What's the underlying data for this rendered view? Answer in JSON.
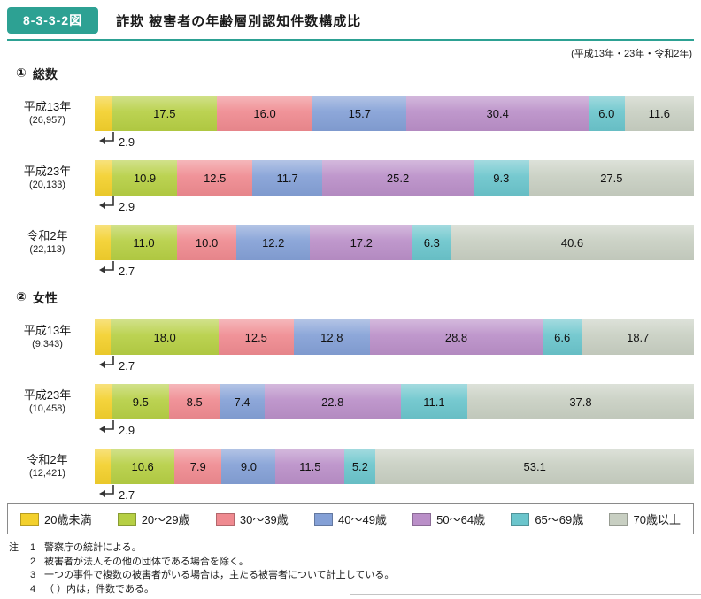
{
  "header": {
    "figure_label": "8-3-3-2図",
    "title": "詐欺 被害者の年齢層別認知件数構成比",
    "period_note": "(平成13年・23年・令和2年)"
  },
  "chart_data": {
    "type": "bar",
    "orientation": "horizontal",
    "stacked": true,
    "unit": "%",
    "xlim": [
      0,
      100
    ],
    "categories": [
      "20歳未満",
      "20～29歳",
      "30～39歳",
      "40～49歳",
      "50～64歳",
      "65～69歳",
      "70歳以上"
    ],
    "colors": [
      "#f3d02c",
      "#b6cf44",
      "#ef8a90",
      "#84a0d6",
      "#ba8fc8",
      "#6bc5cc",
      "#c8cfc2"
    ],
    "sections": [
      {
        "number": "①",
        "label": "総数",
        "rows": [
          {
            "year": "平成13年",
            "count": "(26,957)",
            "values": [
              2.9,
              17.5,
              16.0,
              15.7,
              30.4,
              6.0,
              11.6
            ]
          },
          {
            "year": "平成23年",
            "count": "(20,133)",
            "values": [
              2.9,
              10.9,
              12.5,
              11.7,
              25.2,
              9.3,
              27.5
            ]
          },
          {
            "year": "令和2年",
            "count": "(22,113)",
            "values": [
              2.7,
              11.0,
              10.0,
              12.2,
              17.2,
              6.3,
              40.6
            ]
          }
        ]
      },
      {
        "number": "②",
        "label": "女性",
        "rows": [
          {
            "year": "平成13年",
            "count": "(9,343)",
            "values": [
              2.7,
              18.0,
              12.5,
              12.8,
              28.8,
              6.6,
              18.7
            ]
          },
          {
            "year": "平成23年",
            "count": "(10,458)",
            "values": [
              2.9,
              9.5,
              8.5,
              7.4,
              22.8,
              11.1,
              37.8
            ]
          },
          {
            "year": "令和2年",
            "count": "(12,421)",
            "values": [
              2.7,
              10.6,
              7.9,
              9.0,
              11.5,
              5.2,
              53.1
            ]
          }
        ]
      }
    ],
    "legend_position": "bottom",
    "grid": false
  },
  "notes": {
    "label": "注",
    "items": [
      {
        "num": "1",
        "text": "警察庁の統計による。"
      },
      {
        "num": "2",
        "text": "被害者が法人その他の団体である場合を除く。"
      },
      {
        "num": "3",
        "text": "一つの事件で複数の被害者がいる場合は，主たる被害者について計上している。"
      },
      {
        "num": "4",
        "text": "（ ）内は，件数である。"
      }
    ]
  }
}
